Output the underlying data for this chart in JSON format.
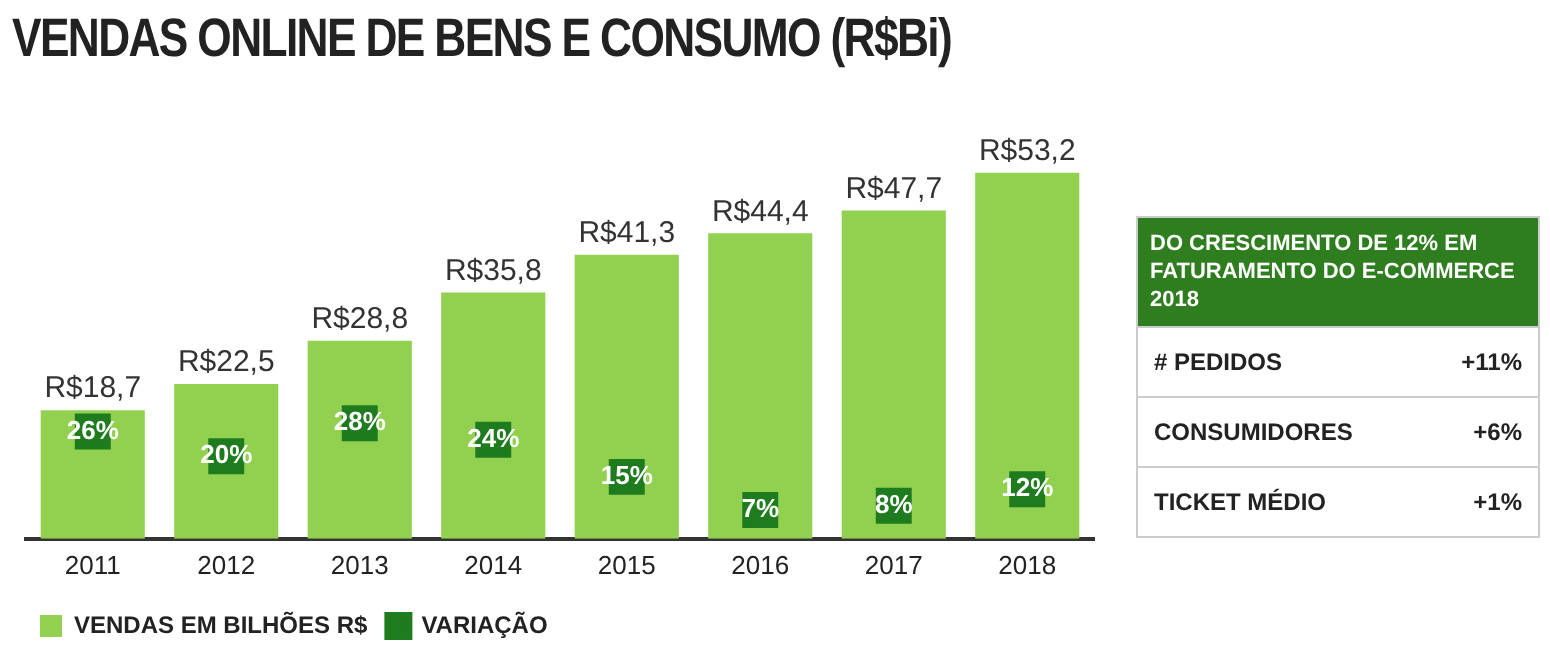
{
  "chart_data": {
    "type": "bar",
    "title": "VENDAS ONLINE DE BENS E CONSUMO (R$Bi)",
    "categories": [
      "2011",
      "2012",
      "2013",
      "2014",
      "2015",
      "2016",
      "2017",
      "2018"
    ],
    "series": [
      {
        "name": "VENDAS EM BILHÕES R$",
        "color": "#92d050",
        "values": [
          18.7,
          22.5,
          28.8,
          35.8,
          41.3,
          44.4,
          47.7,
          53.2
        ],
        "value_labels": [
          "R$18,7",
          "R$22,5",
          "R$28,8",
          "R$35,8",
          "R$41,3",
          "R$44,4",
          "R$47,7",
          "R$53,2"
        ]
      },
      {
        "name": "VARIAÇÃO",
        "type": "scatter",
        "axis": "y2",
        "marker": "square",
        "color": "#1e7b1e",
        "values": [
          26,
          20,
          28,
          24,
          15,
          7,
          8,
          12
        ],
        "value_labels": [
          "26%",
          "20%",
          "28%",
          "24%",
          "15%",
          "7%",
          "8%",
          "12%"
        ]
      }
    ],
    "tick_labels": "x",
    "grid": false,
    "legend": "bottom left",
    "annotations": [
      "DO CRESCIMENTO DE 12% EM FATURAMENTO DO E-COMMERCE 2018",
      "# PEDIDOS",
      "+11%",
      "CONSUMIDORES",
      "+6%",
      "TICKET MÉDIO",
      "+1%"
    ]
  }
}
